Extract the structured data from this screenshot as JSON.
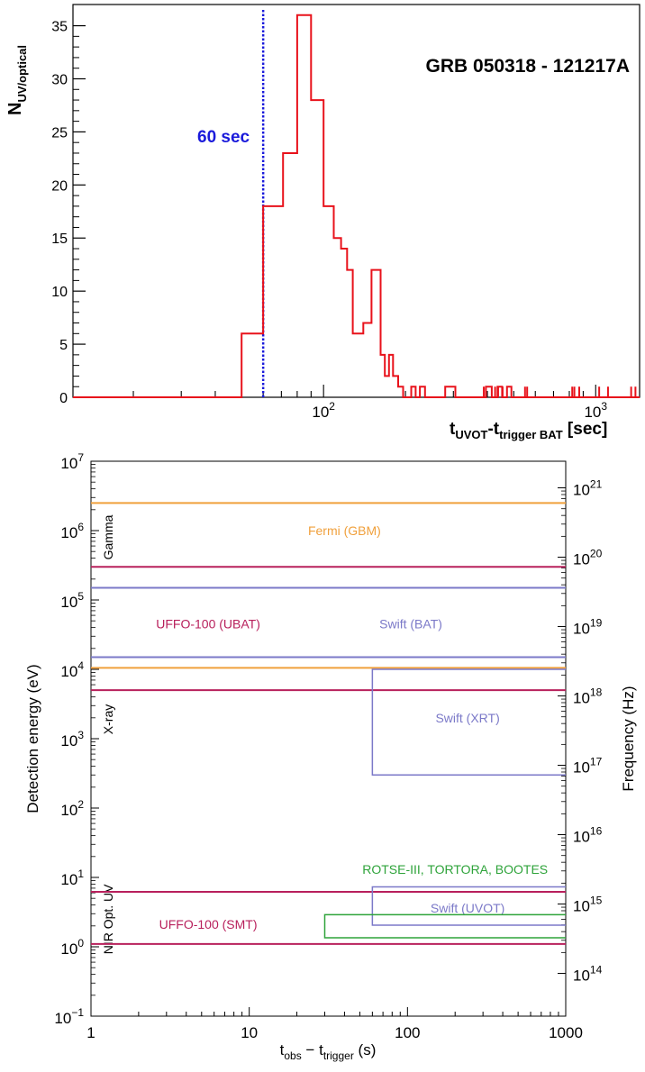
{
  "chart_data": [
    {
      "type": "histogram",
      "annotation": "GRB 050318 - 121217A",
      "xlabel": {
        "main": "t",
        "sub1": "UVOT",
        "dash": "-t",
        "sub2": "trigger BAT",
        "unit": " [sec]"
      },
      "ylabel": {
        "main": "N",
        "sub": "UV/optical"
      },
      "xscale": "log",
      "xlim": [
        12,
        1450
      ],
      "ylim": [
        0,
        37
      ],
      "yticks": [
        0,
        5,
        10,
        15,
        20,
        25,
        30,
        35
      ],
      "xticklabels": [
        {
          "value": 100,
          "base": "10",
          "exp": "2"
        },
        {
          "value": 1000,
          "base": "10",
          "exp": "3"
        }
      ],
      "vline": {
        "x": 60,
        "label": "60 sec",
        "color": "#1a1adb"
      },
      "series_color": "#e8121b",
      "steps": [
        [
          12,
          0
        ],
        [
          50,
          6
        ],
        [
          60,
          18
        ],
        [
          71,
          23
        ],
        [
          80,
          36
        ],
        [
          90,
          28
        ],
        [
          100,
          18
        ],
        [
          109,
          15
        ],
        [
          116,
          14
        ],
        [
          122,
          12
        ],
        [
          128,
          6
        ],
        [
          140,
          7
        ],
        [
          150,
          12
        ],
        [
          162,
          4
        ],
        [
          168,
          2
        ],
        [
          174,
          4
        ],
        [
          180,
          2
        ],
        [
          188,
          1
        ],
        [
          196,
          0
        ],
        [
          210,
          1
        ],
        [
          218,
          0
        ],
        [
          226,
          1
        ],
        [
          236,
          0
        ],
        [
          280,
          1
        ],
        [
          305,
          0
        ],
        [
          395,
          1
        ],
        [
          415,
          0
        ],
        [
          436,
          1
        ],
        [
          453,
          0
        ],
        [
          472,
          1
        ],
        [
          490,
          0
        ],
        [
          1450,
          0
        ]
      ],
      "spikes": [
        388,
        427,
        438,
        455,
        550,
        560,
        820,
        835,
        870,
        1030,
        1110,
        1350,
        1400
      ]
    },
    {
      "type": "box",
      "xlabel": {
        "pre1": "t",
        "sub1": "obs",
        "mid": " − t",
        "sub2": "trigger",
        "post": " (s)"
      },
      "ylabel_left": "Detection energy (eV)",
      "ylabel_right": "Frequency (Hz)",
      "xscale": "log",
      "yscale": "log",
      "xlim": [
        1,
        1000
      ],
      "ylim_exp": [
        -1,
        7
      ],
      "xticklabels": [
        {
          "value": 1,
          "label": "1"
        },
        {
          "value": 10,
          "label": "10"
        },
        {
          "value": 100,
          "label": "100"
        },
        {
          "value": 1000,
          "label": "1000"
        }
      ],
      "yticklabels": [
        {
          "exp": -1,
          "base": "10",
          "sup": "−1"
        },
        {
          "exp": 0,
          "base": "10",
          "sup": "0"
        },
        {
          "exp": 1,
          "base": "10",
          "sup": "1"
        },
        {
          "exp": 2,
          "base": "10",
          "sup": "2"
        },
        {
          "exp": 3,
          "base": "10",
          "sup": "3"
        },
        {
          "exp": 4,
          "base": "10",
          "sup": "4"
        },
        {
          "exp": 5,
          "base": "10",
          "sup": "5"
        },
        {
          "exp": 6,
          "base": "10",
          "sup": "6"
        },
        {
          "exp": 7,
          "base": "10",
          "sup": "7"
        }
      ],
      "freq_ticklabels": [
        {
          "exp": 14,
          "base": "10",
          "sup": "14"
        },
        {
          "exp": 15,
          "base": "10",
          "sup": "15"
        },
        {
          "exp": 16,
          "base": "10",
          "sup": "16"
        },
        {
          "exp": 17,
          "base": "10",
          "sup": "17"
        },
        {
          "exp": 18,
          "base": "10",
          "sup": "18"
        },
        {
          "exp": 19,
          "base": "10",
          "sup": "19"
        },
        {
          "exp": 20,
          "base": "10",
          "sup": "20"
        },
        {
          "exp": 21,
          "base": "10",
          "sup": "21"
        }
      ],
      "bands": [
        {
          "text": "Gamma",
          "energy": 800000
        },
        {
          "text": "X-ray",
          "energy": 1900
        },
        {
          "text": "NIR Opt. UV",
          "energy": 2.5
        }
      ],
      "instruments": [
        {
          "name": "Fermi (GBM)",
          "color": "#f0a03c",
          "energy_range": [
            10500,
            2500000
          ],
          "time_range": [
            1,
            1000
          ],
          "label_at": [
            40,
            1000000
          ]
        },
        {
          "name": "UFFO-100 (UBAT)",
          "color": "#b8205c",
          "energy_range": [
            5000,
            300000
          ],
          "time_range": [
            1,
            1000
          ],
          "label_at": [
            5.5,
            45000
          ]
        },
        {
          "name": "Swift (BAT)",
          "color": "#7b79c8",
          "energy_range": [
            15000,
            150000
          ],
          "time_range": [
            1,
            1000
          ],
          "label_at": [
            105,
            45000
          ]
        },
        {
          "name": "Swift (XRT)",
          "color": "#7b79c8",
          "energy_range": [
            300,
            10000
          ],
          "time_range": [
            60,
            1000
          ],
          "label_at": [
            240,
            2000
          ]
        },
        {
          "name": "UFFO-100 (SMT)",
          "color": "#b8205c",
          "energy_range": [
            1.1,
            6.2
          ],
          "time_range": [
            1,
            1000
          ],
          "label_at": [
            5.5,
            2.1
          ]
        },
        {
          "name": "Swift (UVOT)",
          "color": "#7b79c8",
          "energy_range": [
            2.05,
            7.3
          ],
          "time_range": [
            60,
            1000
          ],
          "label_at": [
            240,
            3.6
          ]
        },
        {
          "name": "ROTSE-III, TORTORA, BOOTES",
          "color": "#2ea33a",
          "energy_range": [
            1.35,
            2.9
          ],
          "time_range": [
            30,
            1000
          ],
          "label_at": [
            200,
            13
          ]
        }
      ]
    }
  ]
}
